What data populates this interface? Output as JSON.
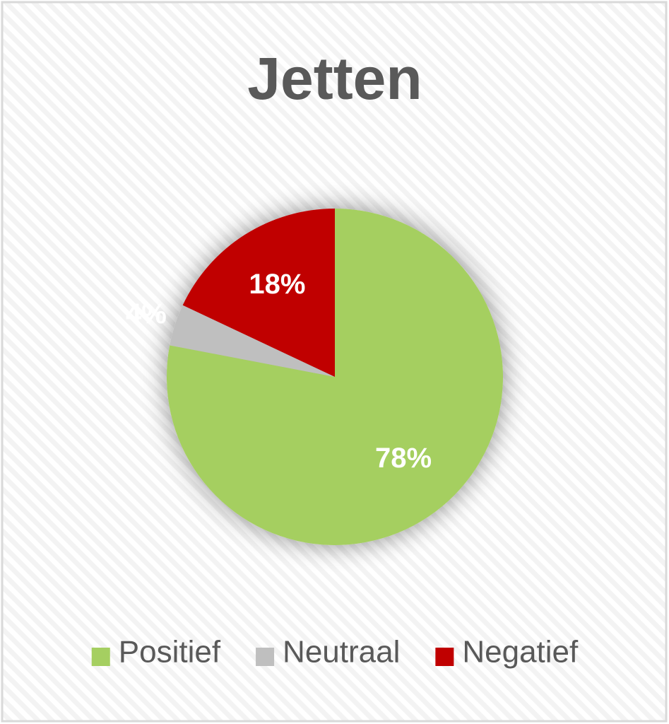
{
  "chart_data": {
    "type": "pie",
    "title": "Jetten",
    "categories": [
      "Positief",
      "Neutraal",
      "Negatief"
    ],
    "values": [
      78,
      4,
      18
    ],
    "value_labels": [
      "78%",
      "4%",
      "18%"
    ],
    "colors": [
      "#a5cf61",
      "#bfbfbf",
      "#c00000"
    ],
    "legend": "bottom"
  }
}
